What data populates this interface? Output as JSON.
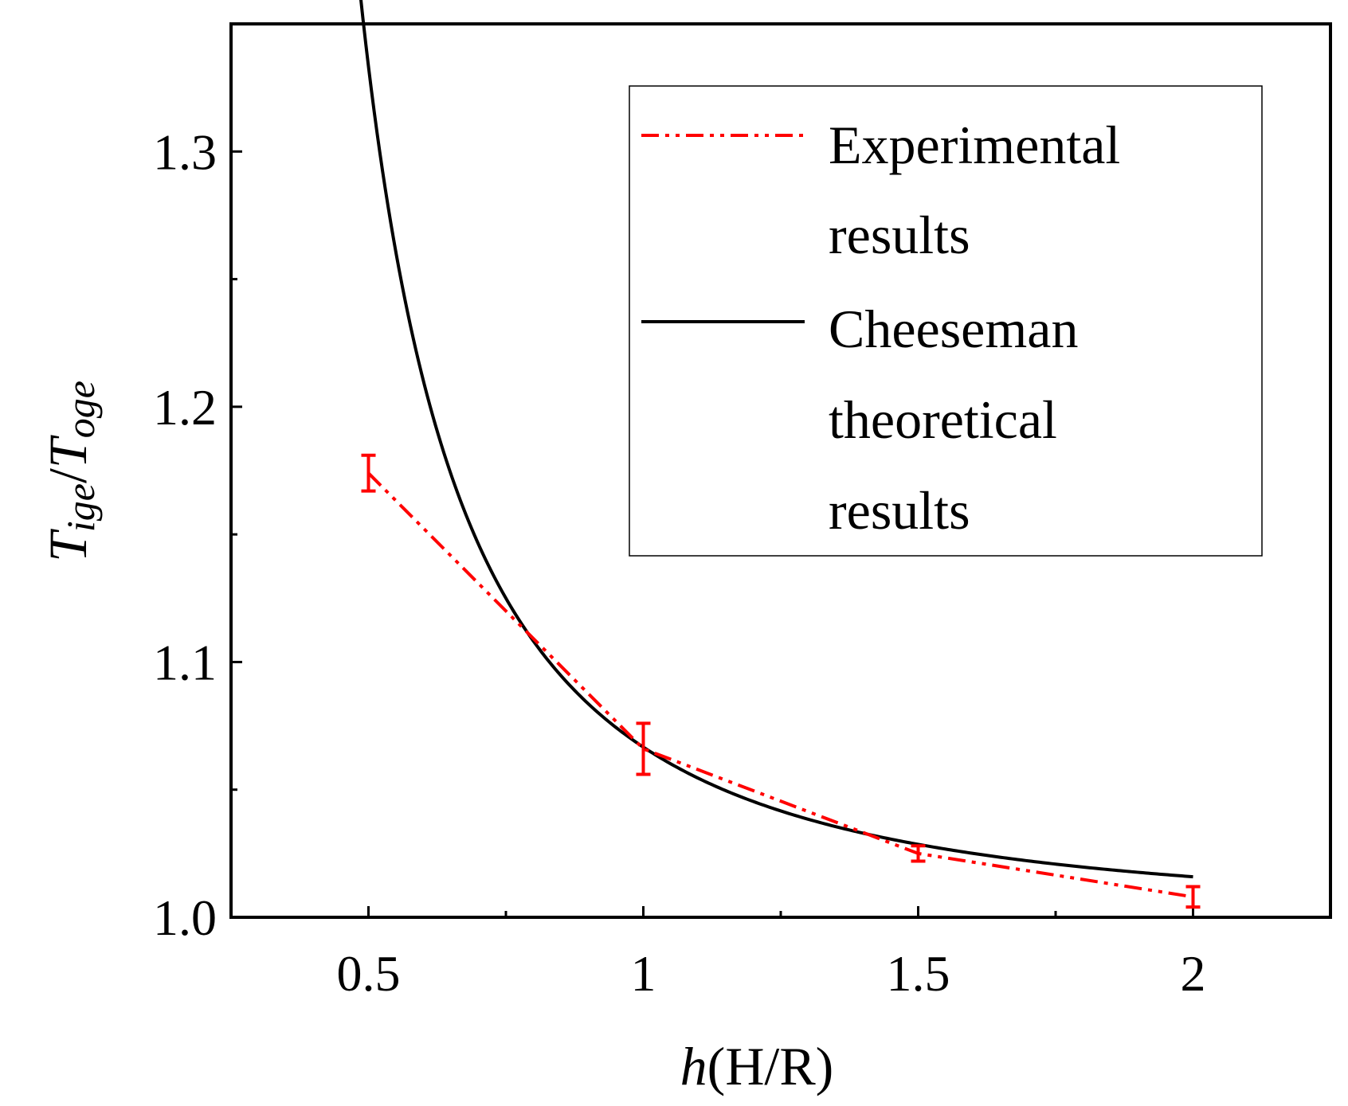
{
  "chart_data": {
    "type": "line",
    "x_axis": {
      "label_italic": "h",
      "label_rest": "(H/R)",
      "range": [
        0.25,
        2.25
      ],
      "ticks": [
        0.5,
        1,
        1.5,
        2
      ],
      "tick_labels": [
        "0.5",
        "1",
        "1.5",
        "2"
      ],
      "minor_ticks": [
        0.75,
        1.25,
        1.75
      ]
    },
    "y_axis": {
      "label_T1": "T",
      "label_sub1": "ige",
      "label_slash": "/",
      "label_T2": "T",
      "label_sub2": "oge",
      "range": [
        1.0,
        1.35
      ],
      "ticks": [
        1.0,
        1.1,
        1.2,
        1.3
      ],
      "tick_labels": [
        "1.0",
        "1.1",
        "1.2",
        "1.3"
      ],
      "minor_ticks": [
        1.05,
        1.15,
        1.25
      ]
    },
    "series": [
      {
        "name": "Experimental results",
        "legend_lines": [
          "Experimental",
          "results"
        ],
        "color": "#ff0000",
        "style": "dash-dot-dot",
        "x": [
          0.5,
          1.0,
          1.5,
          2.0
        ],
        "y": [
          1.174,
          1.066,
          1.025,
          1.008
        ],
        "error": [
          0.007,
          0.01,
          0.003,
          0.004
        ]
      },
      {
        "name": "Cheeseman theoretical results",
        "legend_lines": [
          "Cheeseman",
          "theoretical",
          "results"
        ],
        "color": "#000000",
        "style": "solid",
        "formula": "1/(1-(1/(4h))^2)",
        "x_start": 0.48,
        "x_end": 2.0
      }
    ],
    "grid": false,
    "legend_position": "top-right"
  }
}
